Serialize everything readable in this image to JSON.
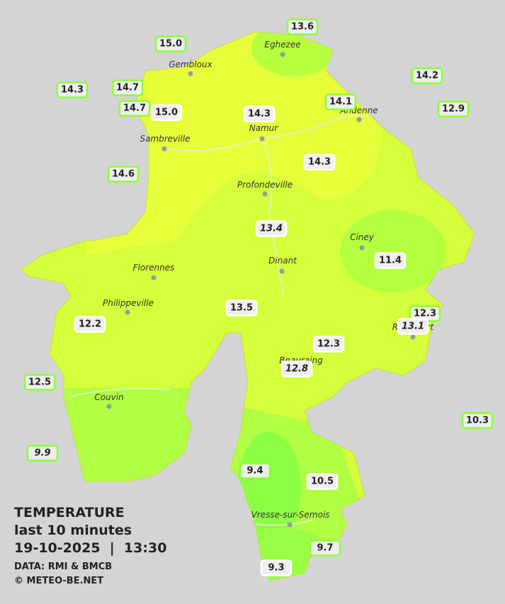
{
  "title": {
    "line1": "TEMPERATURE",
    "line2": "last 10 minutes",
    "line3": "19-10-2025  |  13:30"
  },
  "credits": [
    "DATA: RMI & BMCB",
    "© METEO-BE.NET"
  ],
  "places": [
    "Eghezee",
    "Gembloux",
    "Andenne",
    "Namur",
    "Sambreville",
    "Profondeville",
    "Ciney",
    "Dinant",
    "Florennes",
    "Philippeville",
    "Rochefort",
    "Beauraing",
    "Couvin",
    "Vresse-sur-Semois"
  ],
  "readings": [
    "13.6",
    "15.0",
    "14.3",
    "14.7",
    "14.7",
    "15.0",
    "14.3",
    "14.1",
    "14.2",
    "12.9",
    "14.3",
    "14.6",
    "13.4",
    "11.4",
    "13.5",
    "12.2",
    "12.3",
    "13.1",
    "12.3",
    "12.8",
    "12.5",
    "10.3",
    "9.9",
    "9.4",
    "10.5",
    "9.7",
    "9.3"
  ]
}
